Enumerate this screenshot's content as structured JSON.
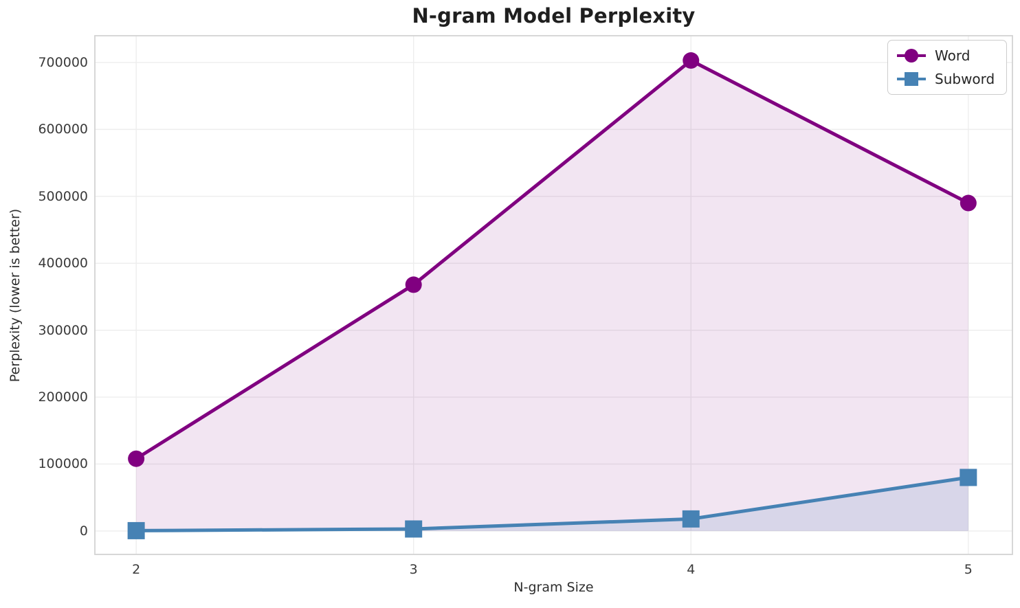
{
  "chart_data": {
    "type": "line",
    "title": "N-gram Model Perplexity",
    "xlabel": "N-gram Size",
    "ylabel": "Perplexity (lower is better)",
    "x": [
      2,
      3,
      4,
      5
    ],
    "series": [
      {
        "name": "Word",
        "values": [
          108000,
          368000,
          703000,
          490000
        ],
        "color": "#800080",
        "fill_color": "rgba(128,0,128,0.10)",
        "marker": "circle"
      },
      {
        "name": "Subword",
        "values": [
          500,
          3000,
          18000,
          80000
        ],
        "color": "#4682B4",
        "fill_color": "rgba(70,130,180,0.15)",
        "marker": "square"
      }
    ],
    "xticks": [
      2,
      3,
      4,
      5
    ],
    "yticks": [
      0,
      100000,
      200000,
      300000,
      400000,
      500000,
      600000,
      700000
    ],
    "xlim": [
      1.851,
      5.159
    ],
    "ylim": [
      -35000,
      740000
    ],
    "grid": true,
    "legend_position": "upper right",
    "fill_to_zero": true,
    "colors": {
      "grid": "#ededed",
      "spine": "#d3d3d3",
      "title_text": "#1f1f1f",
      "tick_text": "#3a3a3a"
    }
  }
}
